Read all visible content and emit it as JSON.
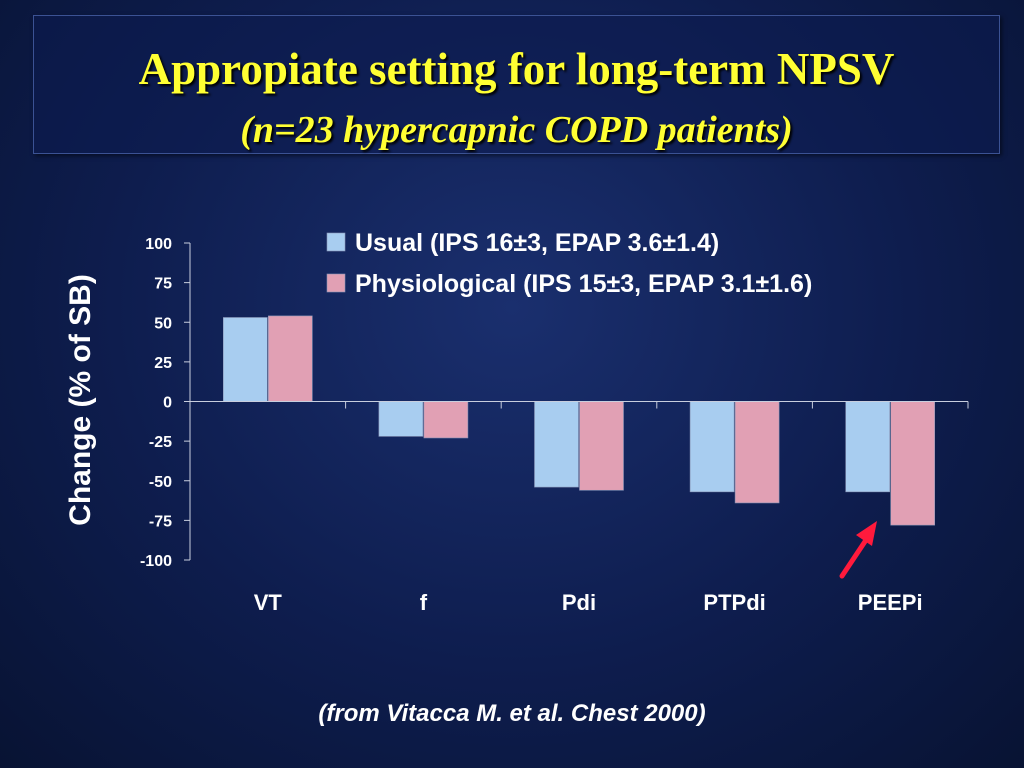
{
  "title": "Appropiate setting for long-term NPSV",
  "subtitle": "(n=23 hypercapnic COPD patients)",
  "source": "(from Vitacca M. et al. Chest 2000)",
  "chart_data": {
    "type": "bar",
    "categories": [
      "VT",
      "f",
      "Pdi",
      "PTPdi",
      "PEEPi"
    ],
    "series": [
      {
        "name": "Usual (IPS 16±3, EPAP 3.6±1.4)",
        "values": [
          53,
          -22,
          -54,
          -57,
          -57
        ],
        "color": "#a8cdf0"
      },
      {
        "name": "Physiological (IPS 15±3, EPAP 3.1±1.6)",
        "values": [
          54,
          -23,
          -56,
          -64,
          -78
        ],
        "color": "#e1a0b4"
      }
    ],
    "ylabel": "Change (% of SB)",
    "xlabel": "",
    "ylim": [
      -100,
      100
    ],
    "yticks": [
      100,
      75,
      50,
      25,
      0,
      -25,
      -50,
      -75,
      -100
    ],
    "grid": false,
    "legend_position": "top-right",
    "annotation": {
      "type": "arrow",
      "color": "#ff1a3c",
      "points_to": "PEEPi Physiological"
    }
  }
}
